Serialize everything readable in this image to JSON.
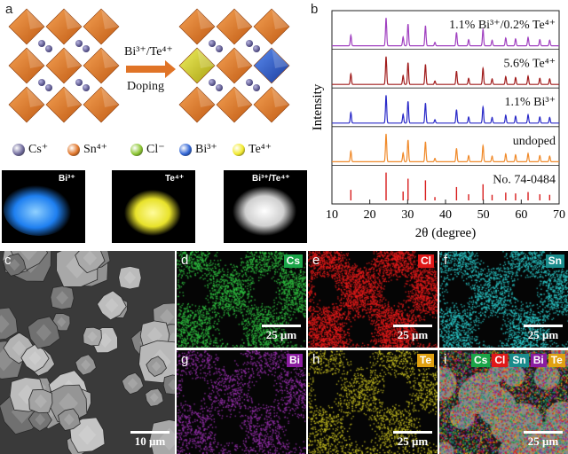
{
  "panel_letters": {
    "a": "a",
    "b": "b",
    "c": "c",
    "d": "d",
    "e": "e",
    "f": "f",
    "g": "g",
    "h": "h",
    "i": "i"
  },
  "doping": {
    "label_top": "Bi³⁺/Te⁴⁺",
    "label_bottom": "Doping"
  },
  "legend": [
    {
      "ion": "Cs⁺",
      "color": "#6f6a9c"
    },
    {
      "ion": "Sn⁴⁺",
      "color": "#e07427"
    },
    {
      "ion": "Cl⁻",
      "color": "#8ac52f"
    },
    {
      "ion": "Bi³⁺",
      "color": "#2e63d4"
    },
    {
      "ion": "Te⁴⁺",
      "color": "#f2ea2b"
    }
  ],
  "photos": [
    {
      "label": "Bi³⁺",
      "glow": "#1e90ff"
    },
    {
      "label": "Te⁴⁺",
      "glow": "#e8e22a"
    },
    {
      "label": "Bi³⁺/Te⁴⁺",
      "glow": "#d8d8d8"
    }
  ],
  "chart_data": {
    "type": "line",
    "xlabel": "2θ (degree)",
    "ylabel": "Intensity",
    "xlim": [
      10,
      70
    ],
    "xticks": [
      10,
      20,
      30,
      40,
      50,
      60,
      70
    ],
    "peaks": [
      15.0,
      24.3,
      28.8,
      30.1,
      34.7,
      37.2,
      42.9,
      46.1,
      49.9,
      52.3,
      55.9,
      58.5,
      61.8,
      64.9,
      67.5
    ],
    "relative_heights": [
      0.38,
      1.0,
      0.32,
      0.78,
      0.72,
      0.12,
      0.48,
      0.22,
      0.58,
      0.2,
      0.28,
      0.25,
      0.3,
      0.22,
      0.2
    ],
    "series": [
      {
        "name": "1.1% Bi³⁺/0.2% Te⁴⁺",
        "color": "#a040c0"
      },
      {
        "name": "5.6% Te⁴⁺",
        "color": "#a01c1c"
      },
      {
        "name": "1.1% Bi³⁺",
        "color": "#2a2ac8"
      },
      {
        "name": "undoped",
        "color": "#f08a2a"
      },
      {
        "name": "No. 74-0484",
        "color": "#d81e1e"
      }
    ]
  },
  "eds_maps": [
    {
      "letter": "d",
      "element": "Cs",
      "badge_color": "#1aa548",
      "dot_color": "#2fc040",
      "density": 0.55
    },
    {
      "letter": "e",
      "element": "Cl",
      "badge_color": "#e01818",
      "dot_color": "#e61a1a",
      "density": 0.85
    },
    {
      "letter": "f",
      "element": "Sn",
      "badge_color": "#1a8c8c",
      "dot_color": "#2ac8c8",
      "density": 0.55
    },
    {
      "letter": "g",
      "element": "Bi",
      "badge_color": "#8a1ca0",
      "dot_color": "#9a30b0",
      "density": 0.35
    },
    {
      "letter": "h",
      "element": "Te",
      "badge_color": "#e0a010",
      "dot_color": "#c8c020",
      "density": 0.35
    }
  ],
  "overlay_map": {
    "letter": "i",
    "elements": [
      "Cs",
      "Cl",
      "Sn",
      "Bi",
      "Te"
    ],
    "colors": [
      "#1aa548",
      "#e01818",
      "#1a8c8c",
      "#8a1ca0",
      "#e0a010"
    ]
  },
  "scale_bars": {
    "sem": "10 μm",
    "eds": "25 μm"
  }
}
